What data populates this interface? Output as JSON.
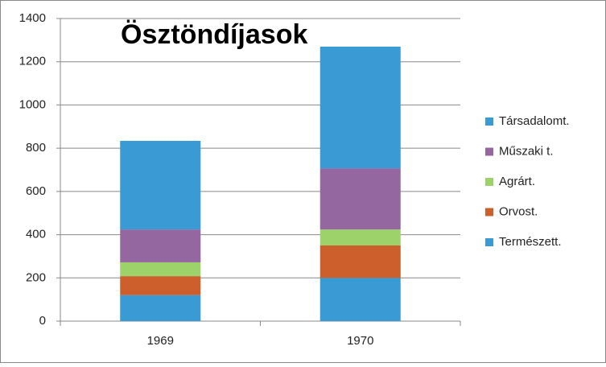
{
  "chart_data": {
    "type": "stacked_bar",
    "title": "Ösztöndíjasok",
    "categories": [
      "1969",
      "1970"
    ],
    "series": [
      {
        "name": "Természett.",
        "color": "#3a9ad4",
        "values": [
          120,
          200
        ]
      },
      {
        "name": "Orvost.",
        "color": "#cc5f2c",
        "values": [
          88,
          150
        ]
      },
      {
        "name": "Agrárt.",
        "color": "#9dd16a",
        "values": [
          64,
          74
        ]
      },
      {
        "name": "Műszaki t.",
        "color": "#9467a0",
        "values": [
          152,
          283
        ]
      },
      {
        "name": "Társadalomt.",
        "color": "#3a9ad4",
        "values": [
          410,
          563
        ]
      }
    ],
    "ylim": [
      0,
      1400
    ],
    "yticks": [
      0,
      200,
      400,
      600,
      800,
      1000,
      1200,
      1400
    ],
    "grid": true,
    "legend": "right"
  }
}
